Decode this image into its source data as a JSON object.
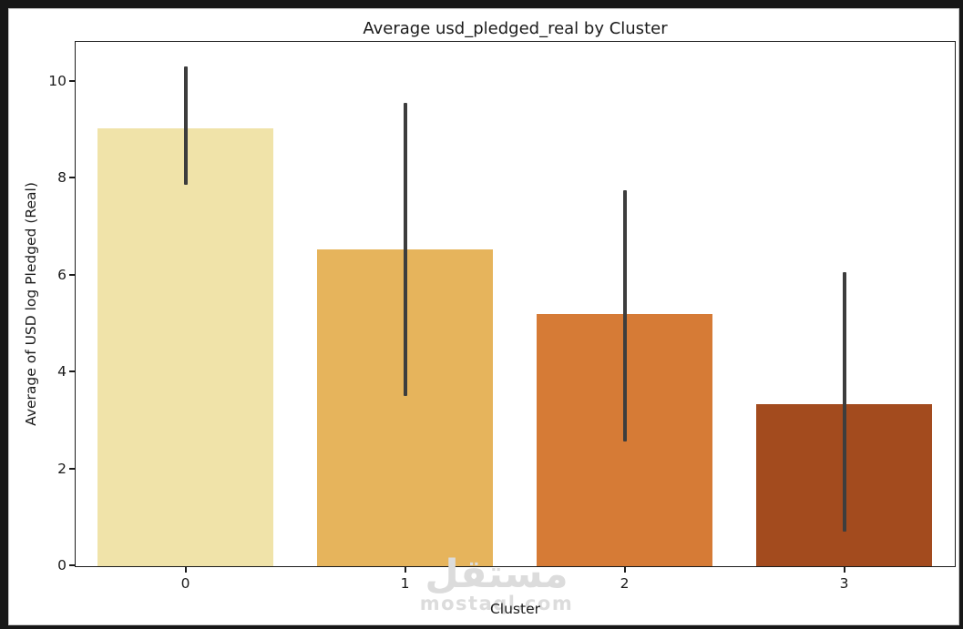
{
  "figure": {
    "title": "Average usd_pledged_real by Cluster",
    "xlabel": "Cluster",
    "ylabel": "Average of USD log Pledged (Real)"
  },
  "chart_data": {
    "type": "bar",
    "title": "Average usd_pledged_real by Cluster",
    "xlabel": "Cluster",
    "ylabel": "Average of USD log Pledged (Real)",
    "categories": [
      "0",
      "1",
      "2",
      "3"
    ],
    "values": [
      9.05,
      6.55,
      5.2,
      3.35
    ],
    "error_low": [
      7.85,
      3.5,
      2.55,
      0.7
    ],
    "error_high": [
      10.3,
      9.55,
      7.75,
      6.05
    ],
    "bar_colors": [
      "#f0e3a9",
      "#e6b45c",
      "#d67b36",
      "#a34b1e"
    ],
    "error_color": "#3d3d3d",
    "yticks": [
      0,
      2,
      4,
      6,
      8,
      10
    ],
    "ylim": [
      0,
      10.81
    ],
    "grid": false,
    "legend": null,
    "bar_width_frac": 0.8
  },
  "watermark": {
    "arabic": "مستقل",
    "latin": "mostaql.com",
    "color": "#dcdcdc"
  },
  "colors": {
    "page_bg": "#171717",
    "figure_bg": "#ffffff",
    "axis": "#1c1c1c",
    "text": "#1a1a1a"
  }
}
